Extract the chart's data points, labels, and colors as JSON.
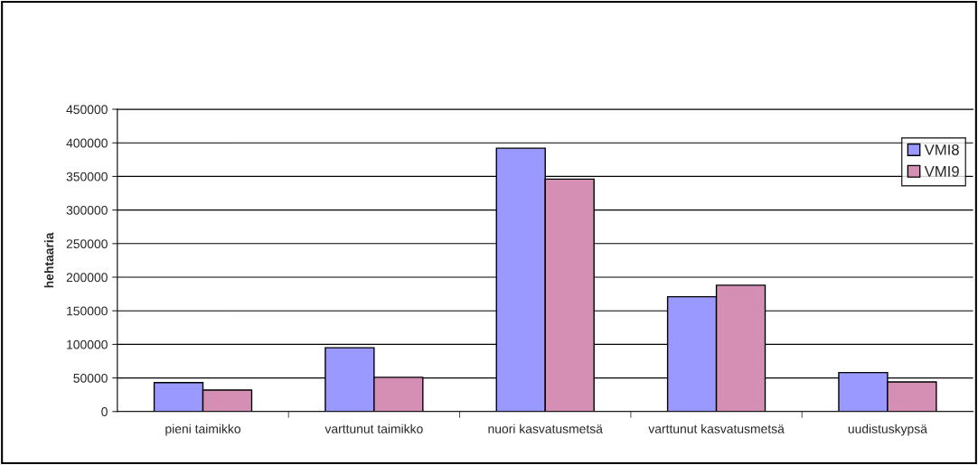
{
  "chart_data": {
    "type": "bar",
    "ylabel": "hehtaaria",
    "categories": [
      "pieni taimikko",
      "varttunut taimikko",
      "nuori kasvatusmetsä",
      "varttunut kasvatusmetsä",
      "uudistuskypsä"
    ],
    "series": [
      {
        "name": "VMI8",
        "color": "#9999ff",
        "values": [
          43000,
          95000,
          392000,
          171000,
          58000
        ]
      },
      {
        "name": "VMI9",
        "color": "#d58fb5",
        "values": [
          32000,
          51000,
          346000,
          188000,
          44000
        ]
      }
    ],
    "ylim": [
      0,
      450000
    ],
    "yticks": [
      0,
      50000,
      100000,
      150000,
      200000,
      250000,
      300000,
      350000,
      400000,
      450000
    ],
    "grid": "y",
    "legend": "top right"
  }
}
